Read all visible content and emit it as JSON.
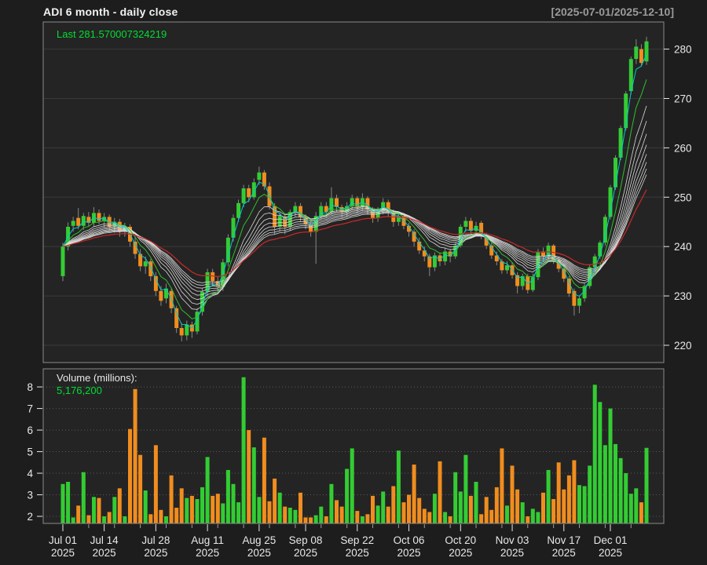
{
  "header": {
    "title": "ADI  6 month - daily close",
    "date_range": "[2025-07-01/2025-12-10]"
  },
  "price_panel": {
    "last_label": "Last 281.570007324219",
    "y_ticks": [
      220,
      230,
      240,
      250,
      260,
      270,
      280
    ],
    "ylim": [
      216.5,
      285.5
    ]
  },
  "volume_panel": {
    "label": "Volume (millions):",
    "value": "5,176,200",
    "y_ticks": [
      2,
      3,
      4,
      5,
      6,
      7,
      8
    ],
    "vlim": [
      1.673,
      8.84
    ]
  },
  "x_axis": {
    "labels": [
      {
        "line1": "Jul 01",
        "line2": "2025",
        "index": 0
      },
      {
        "line1": "Jul 14",
        "line2": "2025",
        "index": 8
      },
      {
        "line1": "Jul 28",
        "line2": "2025",
        "index": 18
      },
      {
        "line1": "Aug 11",
        "line2": "2025",
        "index": 28
      },
      {
        "line1": "Aug 25",
        "line2": "2025",
        "index": 38
      },
      {
        "line1": "Sep 08",
        "line2": "2025",
        "index": 47
      },
      {
        "line1": "Sep 22",
        "line2": "2025",
        "index": 57
      },
      {
        "line1": "Oct 06",
        "line2": "2025",
        "index": 67
      },
      {
        "line1": "Oct 20",
        "line2": "2025",
        "index": 77
      },
      {
        "line1": "Nov 03",
        "line2": "2025",
        "index": 87
      },
      {
        "line1": "Nov 17",
        "line2": "2025",
        "index": 97
      },
      {
        "line1": "Dec 01",
        "line2": "2025",
        "index": 106
      }
    ]
  },
  "colors": {
    "background": "#1d1d1d",
    "panel_bg": "#242424",
    "border": "#8a8a8a",
    "grid_price": "#3a3a3a",
    "grid_volume": "#5a5a5a",
    "axis_text": "#e8e8e8",
    "up": "#33cc33",
    "down": "#f08d1e",
    "wick": "#888888",
    "ema_white": "#dbdbdb",
    "ema_cyan": "#00cccc",
    "ema_green": "#2fbf2f",
    "ema_red": "#cc2a2a",
    "last_text": "#00dd33",
    "range_text": "#9a9a9a"
  },
  "chart_data": {
    "type": "candlestick+volume",
    "title": "ADI 6 month - daily close",
    "ticker": "ADI",
    "last_close": 281.570007324219,
    "last_volume": 5176200,
    "ma_overlays": {
      "cyan_period": 3,
      "green_period": 6,
      "white_periods": [
        9,
        11,
        13,
        15,
        17,
        19,
        21,
        23
      ],
      "red_period": 30
    },
    "columns": [
      "date",
      "open",
      "high",
      "low",
      "close",
      "volume_millions"
    ],
    "ohlc": [
      [
        "2025-07-01",
        234,
        240.8,
        233,
        240,
        3.5
      ],
      [
        "2025-07-02",
        240,
        244.9,
        239.2,
        244,
        3.6
      ],
      [
        "2025-07-03",
        244.2,
        246,
        243,
        245.2,
        1.95
      ],
      [
        "2025-07-07",
        245.8,
        247.8,
        243.5,
        244.2,
        2.5
      ],
      [
        "2025-07-08",
        244.2,
        246.8,
        243.4,
        246.2,
        4.05
      ],
      [
        "2025-07-09",
        246,
        247,
        244,
        244.8,
        2.05
      ],
      [
        "2025-07-10",
        244.8,
        248,
        244,
        246.8,
        2.9
      ],
      [
        "2025-07-11",
        246.8,
        247.5,
        244.5,
        245.2,
        2.85
      ],
      [
        "2025-07-14",
        245.2,
        246.8,
        243.8,
        246,
        2.0
      ],
      [
        "2025-07-15",
        246,
        246.5,
        243,
        244,
        2.2
      ],
      [
        "2025-07-16",
        244,
        245.8,
        242.8,
        245,
        2.9
      ],
      [
        "2025-07-17",
        245,
        245.6,
        242,
        243,
        3.3
      ],
      [
        "2025-07-18",
        243,
        244.8,
        242,
        244,
        2.0
      ],
      [
        "2025-07-21",
        244,
        244.5,
        240,
        241,
        6.05
      ],
      [
        "2025-07-22",
        241,
        242,
        237.5,
        238.5,
        7.9
      ],
      [
        "2025-07-23",
        238.5,
        239.5,
        235,
        236,
        4.85
      ],
      [
        "2025-07-24",
        236,
        238,
        234.5,
        237,
        3.2
      ],
      [
        "2025-07-25",
        237,
        237.5,
        233,
        234,
        2.1
      ],
      [
        "2025-07-28",
        234,
        234.8,
        230,
        231,
        5.3
      ],
      [
        "2025-07-29",
        231,
        232,
        228,
        229,
        2.3
      ],
      [
        "2025-07-30",
        229.5,
        232.5,
        228.5,
        231.5,
        2.0
      ],
      [
        "2025-07-31",
        231,
        231.5,
        226.5,
        227.5,
        3.9
      ],
      [
        "2025-08-01",
        227.5,
        228,
        222.5,
        223.5,
        2.4
      ],
      [
        "2025-08-04",
        223.5,
        224.5,
        220.8,
        222,
        3.3
      ],
      [
        "2025-08-05",
        222,
        225,
        221,
        224.2,
        2.85
      ],
      [
        "2025-08-06",
        224.2,
        224.8,
        221.5,
        222.8,
        2.95
      ],
      [
        "2025-08-07",
        222.8,
        227.5,
        222.2,
        226.8,
        2.8
      ],
      [
        "2025-08-08",
        226.8,
        231.5,
        226,
        230.8,
        3.35
      ],
      [
        "2025-08-11",
        230.8,
        235.5,
        230,
        234.8,
        4.75
      ],
      [
        "2025-08-12",
        234.8,
        235.5,
        232,
        233,
        2.95
      ],
      [
        "2025-08-13",
        233,
        234,
        230.5,
        231.8,
        3.05
      ],
      [
        "2025-08-14",
        231.8,
        237.5,
        231,
        236.8,
        2.6
      ],
      [
        "2025-08-15",
        236.8,
        242.5,
        236,
        241.8,
        4.15
      ],
      [
        "2025-08-18",
        241.8,
        246.5,
        241,
        245.8,
        3.5
      ],
      [
        "2025-08-19",
        245.8,
        249.5,
        245,
        248.8,
        2.65
      ],
      [
        "2025-08-20",
        248.8,
        252.5,
        248,
        251.8,
        8.45
      ],
      [
        "2025-08-21",
        251.8,
        252.5,
        249,
        250,
        6.0
      ],
      [
        "2025-08-22",
        250,
        253.8,
        249.5,
        253,
        5.2
      ],
      [
        "2025-08-25",
        253.5,
        256.2,
        252.5,
        255,
        2.9
      ],
      [
        "2025-08-26",
        255,
        255.5,
        251.5,
        252.2,
        5.65
      ],
      [
        "2025-08-27",
        252.2,
        253,
        247.5,
        248.2,
        2.7
      ],
      [
        "2025-08-28",
        248.2,
        248.8,
        242.5,
        244,
        3.75
      ],
      [
        "2025-08-29",
        244,
        246.8,
        243,
        246.2,
        3.1
      ],
      [
        "2025-09-02",
        246,
        246.5,
        242.5,
        244,
        2.45
      ],
      [
        "2025-09-03",
        244,
        247.5,
        243.2,
        247,
        2.4
      ],
      [
        "2025-09-04",
        247,
        249,
        246,
        248.2,
        2.3
      ],
      [
        "2025-09-05",
        248.2,
        248.8,
        245,
        246,
        3.1
      ],
      [
        "2025-09-08",
        246,
        246.5,
        243.5,
        244.5,
        1.95
      ],
      [
        "2025-09-09",
        244.5,
        245,
        242,
        243,
        1.95
      ],
      [
        "2025-09-10",
        243,
        247,
        236.5,
        246.2,
        2.05
      ],
      [
        "2025-09-11",
        246.2,
        249,
        245.5,
        248.2,
        2.45
      ],
      [
        "2025-09-12",
        248.2,
        249,
        246,
        247,
        2.0
      ],
      [
        "2025-09-15",
        247,
        252,
        246.5,
        249.8,
        3.5
      ],
      [
        "2025-09-16",
        249.8,
        250.5,
        247,
        248,
        2.75
      ],
      [
        "2025-09-17",
        248,
        248.5,
        245.8,
        247,
        2.45
      ],
      [
        "2025-09-18",
        247,
        249,
        246,
        248.2,
        4.2
      ],
      [
        "2025-09-19",
        248.2,
        250.5,
        247.5,
        249.8,
        5.15
      ],
      [
        "2025-09-22",
        249.8,
        250.2,
        246.8,
        248,
        2.25
      ],
      [
        "2025-09-23",
        248,
        250.8,
        247.2,
        249.8,
        2.0
      ],
      [
        "2025-09-24",
        249.8,
        250.2,
        246.5,
        247.5,
        2.1
      ],
      [
        "2025-09-25",
        247.5,
        248,
        244.8,
        245.8,
        2.95
      ],
      [
        "2025-09-26",
        245.8,
        248,
        245,
        247.2,
        2.5
      ],
      [
        "2025-09-29",
        247.2,
        249.8,
        246.5,
        249,
        3.15
      ],
      [
        "2025-09-30",
        249,
        249.5,
        246,
        247,
        2.45
      ],
      [
        "2025-10-01",
        247,
        247.5,
        244,
        245,
        3.4
      ],
      [
        "2025-10-02",
        245,
        247,
        244.2,
        246.2,
        5.05
      ],
      [
        "2025-10-03",
        246.2,
        246.8,
        243.5,
        244.2,
        2.65
      ],
      [
        "2025-10-06",
        244.2,
        244.8,
        242,
        243,
        3.0
      ],
      [
        "2025-10-07",
        243,
        243.5,
        240,
        241,
        4.4
      ],
      [
        "2025-10-08",
        241,
        241.8,
        238.5,
        239.2,
        2.85
      ],
      [
        "2025-10-09",
        239.2,
        240,
        237,
        238,
        2.35
      ],
      [
        "2025-10-10",
        238,
        238.5,
        234,
        235.8,
        2.2
      ],
      [
        "2025-10-13",
        235.8,
        238.8,
        235,
        238.2,
        3.05
      ],
      [
        "2025-10-14",
        238.2,
        238.8,
        236,
        237,
        4.55
      ],
      [
        "2025-10-15",
        237,
        239.8,
        236.2,
        239,
        2.2
      ],
      [
        "2025-10-16",
        239,
        239.5,
        236.8,
        238,
        2.0
      ],
      [
        "2025-10-17",
        238,
        240.8,
        237.5,
        240.2,
        4.05
      ],
      [
        "2025-10-20",
        240.2,
        244.5,
        239.8,
        244,
        3.15
      ],
      [
        "2025-10-21",
        244,
        246,
        243,
        245.2,
        4.85
      ],
      [
        "2025-10-22",
        245.2,
        245.8,
        242.5,
        243.2,
        2.95
      ],
      [
        "2025-10-23",
        243.2,
        245,
        242.5,
        244.2,
        3.6
      ],
      [
        "2025-10-24",
        244.8,
        245.2,
        241.5,
        242.2,
        2.1
      ],
      [
        "2025-10-27",
        242.2,
        242.8,
        239.5,
        240.2,
        2.9
      ],
      [
        "2025-10-28",
        240.2,
        240.8,
        237.5,
        238.2,
        2.3
      ],
      [
        "2025-10-29",
        238.2,
        239,
        236.2,
        237,
        3.35
      ],
      [
        "2025-10-30",
        237,
        237.5,
        234.5,
        235.2,
        5.15
      ],
      [
        "2025-10-31",
        235.2,
        237,
        234.5,
        236.2,
        2.5
      ],
      [
        "2025-11-03",
        236.2,
        236.8,
        233.5,
        234.2,
        4.35
      ],
      [
        "2025-11-04",
        234.2,
        234.8,
        230.5,
        232,
        3.25
      ],
      [
        "2025-11-05",
        232,
        234.5,
        231.2,
        234,
        2.65
      ],
      [
        "2025-11-06",
        234,
        234.5,
        230.5,
        231.2,
        2.0
      ],
      [
        "2025-11-07",
        231.2,
        234.5,
        230.8,
        233.8,
        2.35
      ],
      [
        "2025-11-10",
        233.8,
        239.5,
        233.2,
        239,
        2.2
      ],
      [
        "2025-11-11",
        239,
        239.8,
        237,
        238,
        3.1
      ],
      [
        "2025-11-12",
        238,
        240.8,
        237.2,
        240.2,
        4.15
      ],
      [
        "2025-11-13",
        240.2,
        240.5,
        236.5,
        237.2,
        2.8
      ],
      [
        "2025-11-14",
        237.2,
        237.8,
        234.8,
        235.5,
        4.5
      ],
      [
        "2025-11-17",
        235.5,
        236,
        232.8,
        233.5,
        3.25
      ],
      [
        "2025-11-18",
        233.5,
        234,
        229.8,
        230.5,
        3.9
      ],
      [
        "2025-11-19",
        231,
        231.5,
        226,
        228,
        4.6
      ],
      [
        "2025-11-20",
        228,
        230,
        226.5,
        229.5,
        3.45
      ],
      [
        "2025-11-21",
        229.5,
        232.5,
        228.8,
        232,
        3.4
      ],
      [
        "2025-11-24",
        232,
        236.2,
        231.5,
        235.8,
        4.35
      ],
      [
        "2025-11-25",
        235.8,
        238.5,
        235,
        238,
        8.1
      ],
      [
        "2025-11-26",
        238,
        241.2,
        237.5,
        240.8,
        7.3
      ],
      [
        "2025-11-28",
        240.8,
        246.5,
        240.2,
        246,
        5.3
      ],
      [
        "2025-12-01",
        246,
        252.5,
        245.5,
        252,
        7.0
      ],
      [
        "2025-12-02",
        252,
        258.5,
        251.5,
        258,
        5.35
      ],
      [
        "2025-12-03",
        258,
        264.5,
        257.5,
        264,
        4.7
      ],
      [
        "2025-12-04",
        264,
        271.5,
        263.5,
        271,
        4.0
      ],
      [
        "2025-12-05",
        271.5,
        278.5,
        270.8,
        278,
        3.05
      ],
      [
        "2025-12-08",
        278,
        282,
        277,
        280.5,
        3.3
      ],
      [
        "2025-12-09",
        280,
        281,
        276.5,
        277.2,
        2.65
      ],
      [
        "2025-12-10",
        277.5,
        282.5,
        276.8,
        281.57,
        5.1762
      ]
    ]
  }
}
